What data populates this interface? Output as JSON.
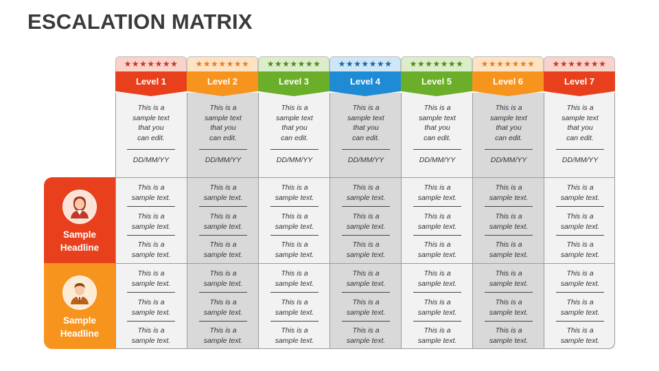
{
  "title": "ESCALATION MATRIX",
  "stars": "★★★★★★★",
  "levels": [
    {
      "label": "Level 1",
      "color": "#e8401c",
      "tint": "#f9d2c9",
      "star_color": "#c0392b"
    },
    {
      "label": "Level 2",
      "color": "#f7941d",
      "tint": "#fde3c4",
      "star_color": "#e67e22"
    },
    {
      "label": "Level 3",
      "color": "#6aae2a",
      "tint": "#dceec9",
      "star_color": "#4e8a1c"
    },
    {
      "label": "Level 4",
      "color": "#1e8bd4",
      "tint": "#cfe6f6",
      "star_color": "#1565a8"
    },
    {
      "label": "Level 5",
      "color": "#6aae2a",
      "tint": "#dceec9",
      "star_color": "#4e8a1c"
    },
    {
      "label": "Level 6",
      "color": "#f7941d",
      "tint": "#fde3c4",
      "star_color": "#e67e22"
    },
    {
      "label": "Level 7",
      "color": "#e8401c",
      "tint": "#f9d2c9",
      "star_color": "#c0392b"
    }
  ],
  "top_text_lines": [
    "This is a",
    "sample text",
    "that you",
    "can edit."
  ],
  "date_text": "DD/MM/YY",
  "cell_text_lines": [
    "This is a",
    "sample text."
  ],
  "row_headers": [
    {
      "label_line1": "Sample",
      "label_line2": "Headline",
      "icon": "businesswoman-icon"
    },
    {
      "label_line1": "Sample",
      "label_line2": "Headline",
      "icon": "businessman-icon"
    }
  ]
}
